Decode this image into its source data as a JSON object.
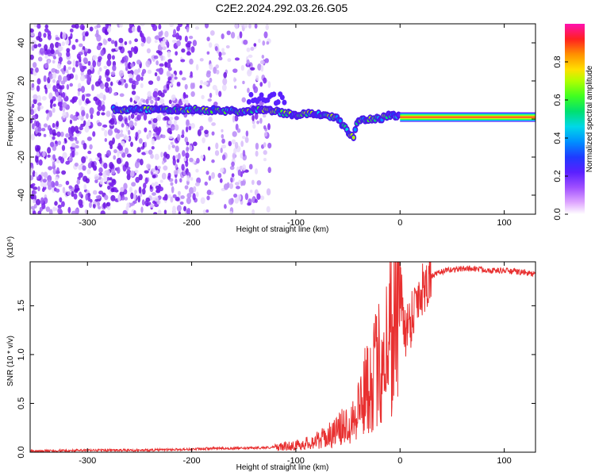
{
  "figure": {
    "title": "C2E2.2024.292.03.26.G05"
  },
  "chart_data": [
    {
      "type": "heatmap",
      "title": "",
      "xlabel": "Height of straight line (km)",
      "ylabel": "Frequency (Hz)",
      "xlim": [
        -355,
        130
      ],
      "ylim": [
        -50,
        50
      ],
      "xticks": [
        -300,
        -200,
        -100,
        0,
        100
      ],
      "yticks": [
        -40,
        -20,
        0,
        20,
        40
      ],
      "colorbar": {
        "label": "Normalized spectral amplitude",
        "range": [
          0,
          1
        ],
        "ticks": [
          "0.0",
          "0.2",
          "0.4",
          "0.6",
          "0.8"
        ]
      },
      "tone_track": {
        "description_points_x": [
          -275,
          -230,
          -200,
          -150,
          -135,
          -120,
          -100,
          -80,
          -60,
          -45,
          -40,
          -30,
          -20,
          -10,
          -5,
          0,
          130
        ],
        "description_points_y": [
          5,
          5,
          5,
          4,
          5,
          4,
          2,
          3,
          0,
          -10,
          0,
          0,
          0,
          2,
          2,
          1,
          1
        ]
      },
      "colors": {
        "noise": "#7b1fe6",
        "colormap": [
          "#ffffff",
          "#e6b8ff",
          "#8a2be2",
          "#1f3bff",
          "#00c8ff",
          "#00e070",
          "#7cff00",
          "#ffe000",
          "#ff8000",
          "#ff1010",
          "#ff00a0"
        ]
      }
    },
    {
      "type": "line",
      "title": "",
      "xlabel": "Height of straight line (km)",
      "ylabel": "SNR (10 * v/v)",
      "y_multiplier": "(x10⁴)",
      "xlim": [
        -355,
        130
      ],
      "ylim": [
        0,
        1.95
      ],
      "xticks": [
        -300,
        -200,
        -100,
        0,
        100
      ],
      "yticks": [
        "0.0",
        "0.5",
        "1.0",
        "1.5"
      ],
      "series": [
        {
          "color": "#e83030",
          "x": [
            -355,
            -300,
            -250,
            -200,
            -180,
            -150,
            -120,
            -100,
            -90,
            -80,
            -70,
            -60,
            -50,
            -45,
            -40,
            -35,
            -30,
            -25,
            -20,
            -15,
            -10,
            -5,
            0,
            5,
            10,
            15,
            20,
            25,
            30,
            40,
            50,
            60,
            70,
            80,
            90,
            100,
            110,
            120,
            130
          ],
          "y": [
            0.01,
            0.02,
            0.02,
            0.03,
            0.04,
            0.04,
            0.05,
            0.07,
            0.09,
            0.12,
            0.16,
            0.22,
            0.3,
            0.36,
            0.46,
            0.58,
            0.72,
            0.8,
            0.9,
            1.05,
            1.2,
            1.45,
            1.7,
            1.25,
            1.35,
            1.55,
            1.65,
            1.75,
            1.8,
            1.85,
            1.87,
            1.88,
            1.88,
            1.87,
            1.86,
            1.86,
            1.85,
            1.84,
            1.82
          ]
        }
      ]
    }
  ]
}
